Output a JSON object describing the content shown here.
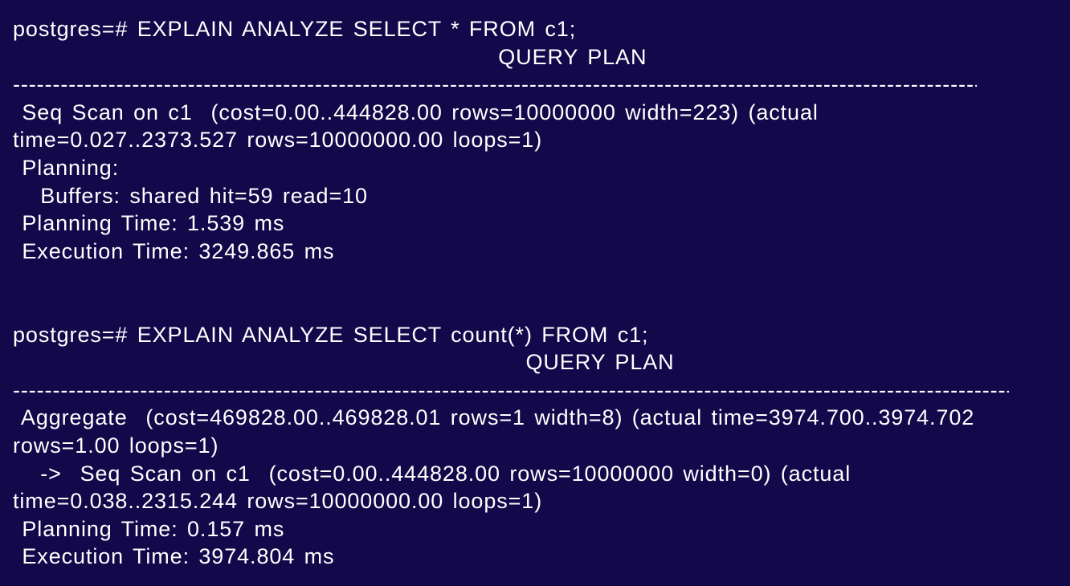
{
  "terminal": {
    "background": "#12084a",
    "foreground": "#ffffff",
    "block1": {
      "command": "postgres=# EXPLAIN ANALYZE SELECT * FROM c1;",
      "header": "                                                     QUERY PLAN",
      "separator": "------------------------------------------------------------------------------------------------------------------------------------------------------",
      "lines": [
        " Seq Scan on c1  (cost=0.00..444828.00 rows=10000000 width=223) (actual",
        "time=0.027..2373.527 rows=10000000.00 loops=1)",
        " Planning:",
        "   Buffers: shared hit=59 read=10",
        " Planning Time: 1.539 ms",
        " Execution Time: 3249.865 ms"
      ]
    },
    "block2": {
      "command": "postgres=# EXPLAIN ANALYZE SELECT count(*) FROM c1;",
      "header": "                                                        QUERY PLAN",
      "separator": "------------------------------------------------------------------------------------------------------------------------------------------------------",
      "lines": [
        " Aggregate  (cost=469828.00..469828.01 rows=1 width=8) (actual time=3974.700..3974.702",
        "rows=1.00 loops=1)",
        "   ->  Seq Scan on c1  (cost=0.00..444828.00 rows=10000000 width=0) (actual",
        "time=0.038..2315.244 rows=10000000.00 loops=1)",
        " Planning Time: 0.157 ms",
        " Execution Time: 3974.804 ms"
      ]
    }
  }
}
